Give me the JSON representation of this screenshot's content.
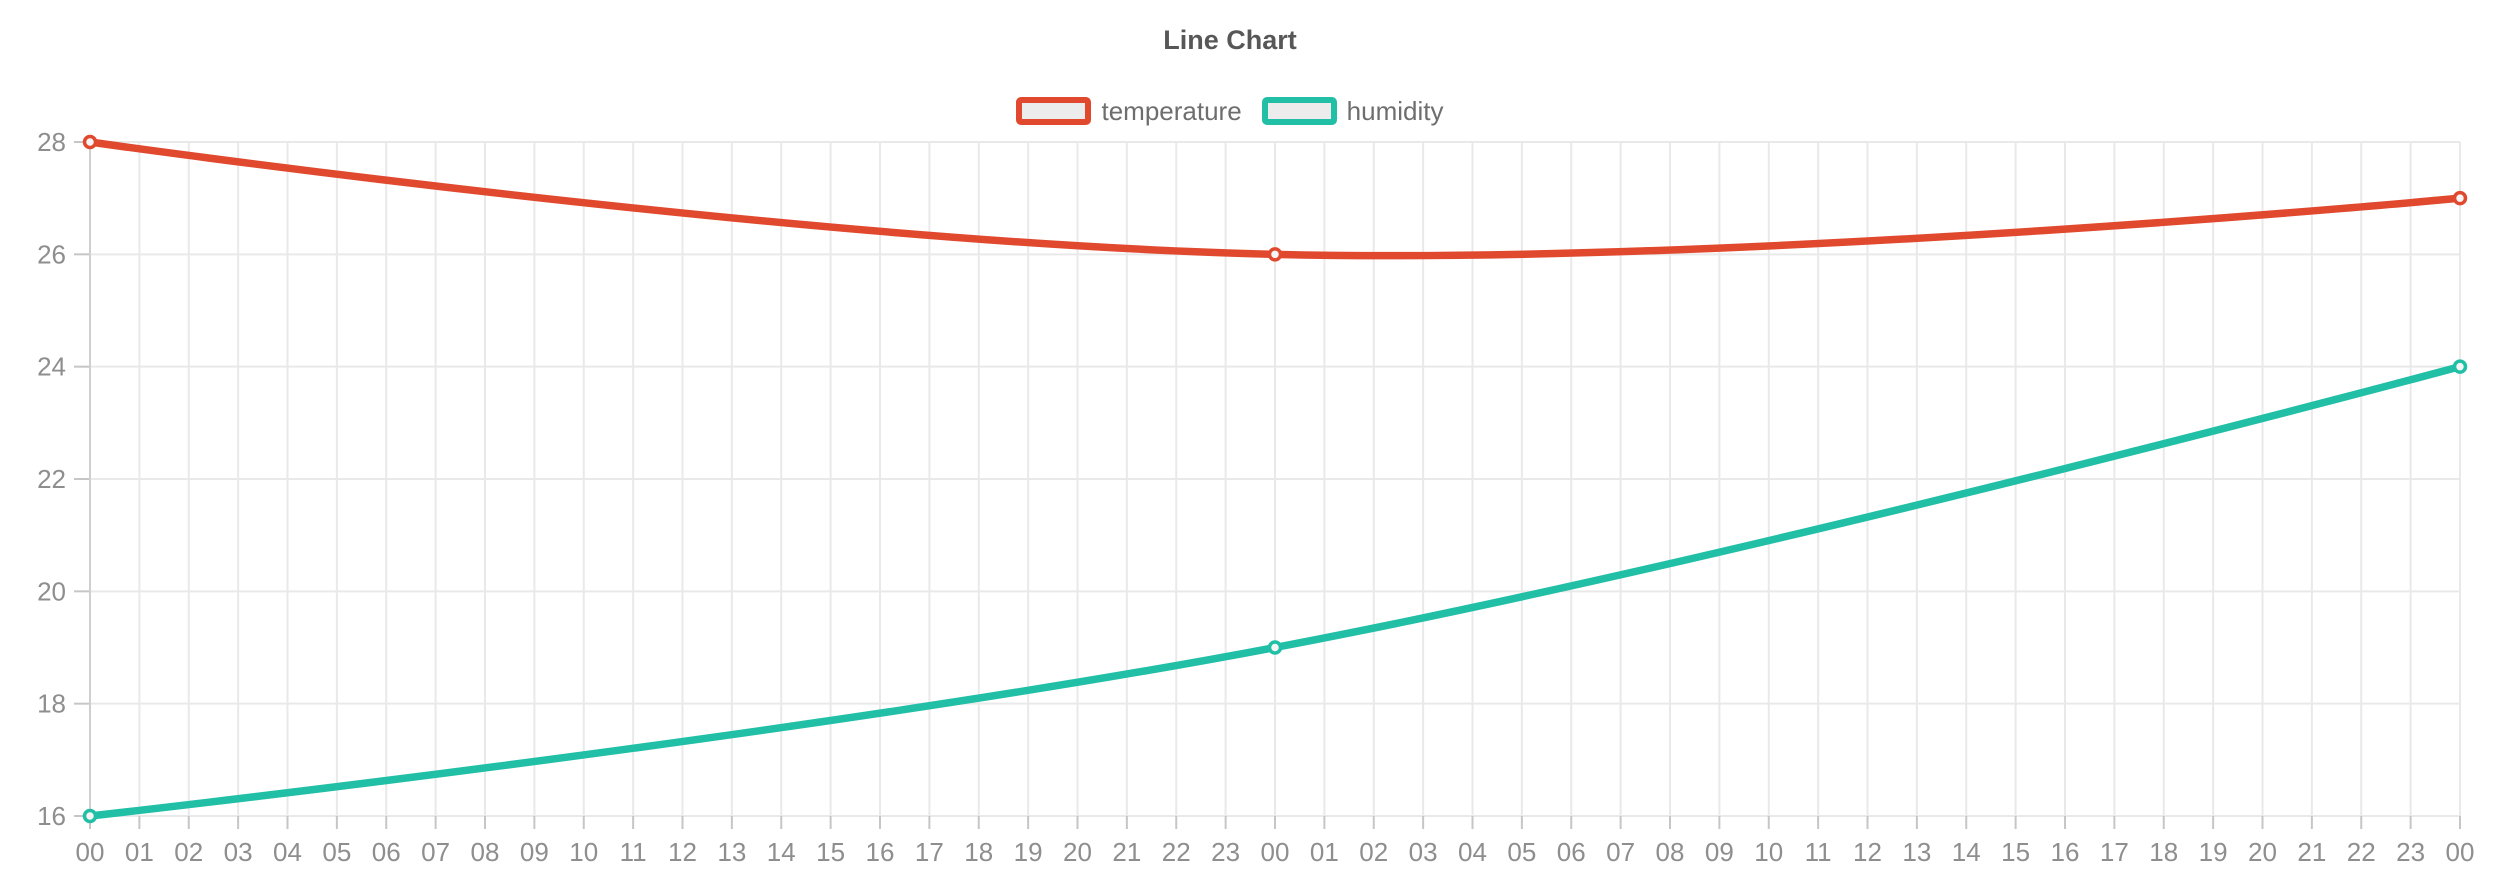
{
  "page": {
    "background": "#ffffff"
  },
  "chart_data": {
    "type": "line",
    "title": "Line Chart",
    "legend_position": "top",
    "grid": true,
    "xlabel": "",
    "ylabel": "",
    "ylim": [
      16,
      28
    ],
    "y_ticks": [
      16,
      18,
      20,
      22,
      24,
      26,
      28
    ],
    "x_labels": [
      "00",
      "01",
      "02",
      "03",
      "04",
      "05",
      "06",
      "07",
      "08",
      "09",
      "10",
      "11",
      "12",
      "13",
      "14",
      "15",
      "16",
      "17",
      "18",
      "19",
      "20",
      "21",
      "22",
      "23",
      "00",
      "01",
      "02",
      "03",
      "04",
      "05",
      "06",
      "07",
      "08",
      "09",
      "10",
      "11",
      "12",
      "13",
      "14",
      "15",
      "16",
      "17",
      "18",
      "19",
      "20",
      "21",
      "22",
      "23",
      "00"
    ],
    "series": [
      {
        "name": "temperature",
        "color": "#e1492f",
        "marker": "open-circle",
        "points": [
          {
            "x_index": 0,
            "x_label": "00",
            "value": 28
          },
          {
            "x_index": 24,
            "x_label": "00",
            "value": 26
          },
          {
            "x_index": 48,
            "x_label": "00",
            "value": 27
          }
        ]
      },
      {
        "name": "humidity",
        "color": "#21bfa6",
        "marker": "open-circle",
        "points": [
          {
            "x_index": 0,
            "x_label": "00",
            "value": 16
          },
          {
            "x_index": 24,
            "x_label": "00",
            "value": 19
          },
          {
            "x_index": 48,
            "x_label": "00",
            "value": 24
          }
        ]
      }
    ],
    "style": {
      "grid_color": "#e9e9e9",
      "axis_line_color": "#cfcfcf",
      "tick_color": "#c6c6c6",
      "axis_text_color": "#8e8e8e",
      "title_color": "#575757",
      "legend_text_color": "#6e6e6e",
      "legend_box_fill": "#ececec",
      "point_fill": "#f5f5f5"
    }
  }
}
